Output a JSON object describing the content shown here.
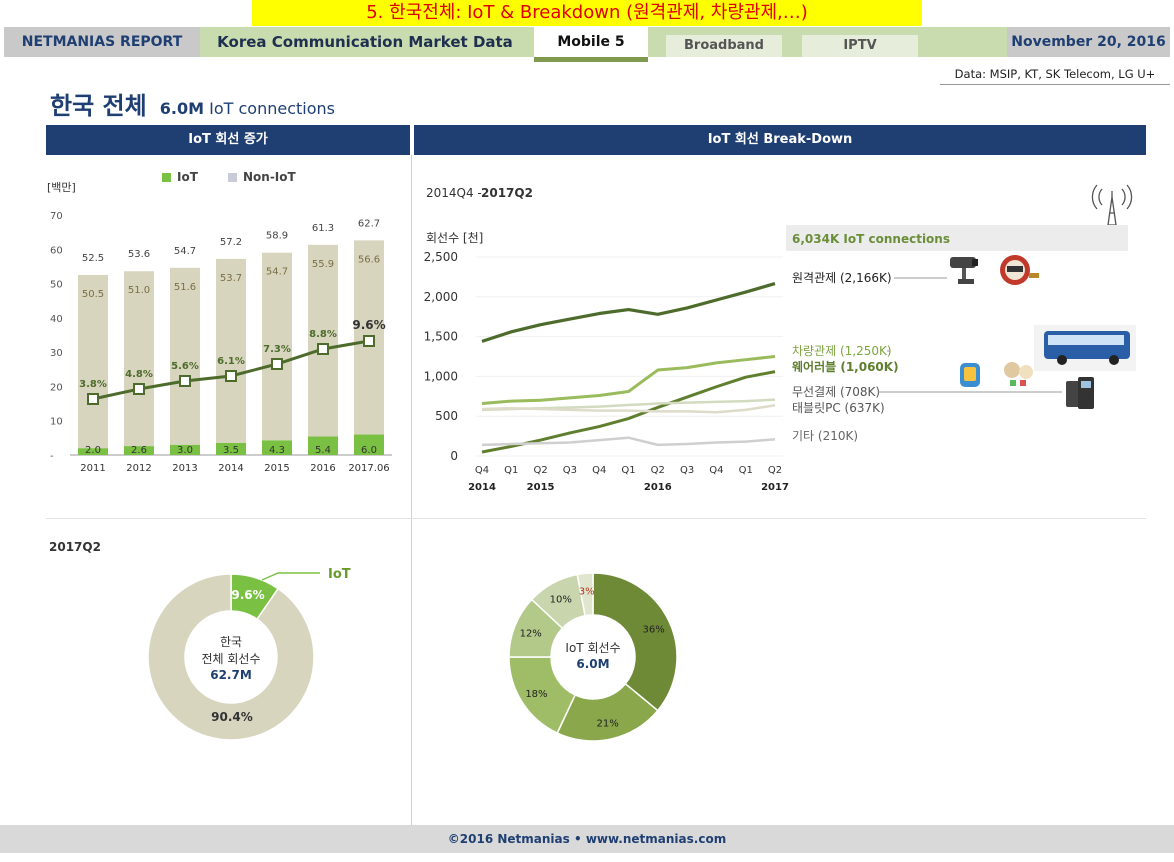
{
  "banner": "5. 한국전체: IoT & Breakdown (원격관제, 차량관제,…)",
  "header": {
    "report": "NETMANIAS REPORT",
    "market": "Korea Communication Market Data",
    "tabs": [
      {
        "label": "Mobile 5",
        "active": true
      },
      {
        "label": "Broadband",
        "active": false
      },
      {
        "label": "IPTV",
        "active": false
      }
    ],
    "date": "November 20, 2016"
  },
  "source_note": "Data: MSIP, KT, SK Telecom, LG U+",
  "page_title": {
    "main": "한국 전체",
    "highlight": "6.0M",
    "rest": "IoT connections"
  },
  "panels": {
    "left_title": "IoT 회선 증가",
    "right_title": "IoT 회선 Break-Down"
  },
  "colors": {
    "navy": "#1f3f73",
    "iot_green": "#7ac143",
    "non_iot": "#d8d5bf",
    "dark_green": "#4d6b2b",
    "mid_green": "#8fb05a"
  },
  "chart_data": [
    {
      "type": "bar",
      "title": "IoT 회선 증가",
      "ylabel": "[백만]",
      "ylim": [
        0,
        70
      ],
      "yticks": [
        "-",
        "10",
        "20",
        "30",
        "40",
        "50",
        "60",
        "70"
      ],
      "categories": [
        "2011",
        "2012",
        "2013",
        "2014",
        "2015",
        "2016",
        "2017.06"
      ],
      "legend": [
        "IoT",
        "Non-IoT"
      ],
      "series": [
        {
          "name": "IoT",
          "values": [
            2.0,
            2.6,
            3.0,
            3.5,
            4.3,
            5.4,
            6.0
          ],
          "labels": [
            "2.0",
            "2.6",
            "3.0",
            "3.5",
            "4.3",
            "5.4",
            "6.0"
          ]
        },
        {
          "name": "Non-IoT",
          "values": [
            50.5,
            51.0,
            51.6,
            53.7,
            54.7,
            55.9,
            56.6
          ],
          "labels": [
            "50.5",
            "51.0",
            "51.6",
            "53.7",
            "54.7",
            "55.9",
            "56.6"
          ]
        }
      ],
      "totals": [
        "52.5",
        "53.6",
        "54.7",
        "57.2",
        "58.9",
        "61.3",
        "62.7"
      ],
      "iot_share": {
        "values": [
          3.8,
          4.8,
          5.6,
          6.1,
          7.3,
          8.8,
          9.6
        ],
        "labels": [
          "3.8%",
          "4.8%",
          "5.6%",
          "6.1%",
          "7.3%",
          "8.8%",
          "9.6%"
        ]
      }
    },
    {
      "type": "line",
      "period_prefix": "2014Q4 - ",
      "period_bold": "2017Q2",
      "ylabel": "회선수 [천]",
      "ylim": [
        0,
        2500
      ],
      "yticks": [
        "0",
        "500",
        "1,000",
        "1,500",
        "2,000",
        "2,500"
      ],
      "x": [
        "Q4",
        "Q1",
        "Q2",
        "Q3",
        "Q4",
        "Q1",
        "Q2",
        "Q3",
        "Q4",
        "Q1",
        "Q2"
      ],
      "years": [
        "2014",
        "2015",
        "2016",
        "2017"
      ],
      "total_label": "6,034K IoT connections",
      "series": [
        {
          "name": "원격관제 (2,166K)",
          "values": [
            1440,
            1560,
            1650,
            1720,
            1790,
            1840,
            1780,
            1860,
            1960,
            2060,
            2166
          ]
        },
        {
          "name": "차량관제 (1,250K)",
          "values": [
            660,
            690,
            700,
            730,
            760,
            810,
            1080,
            1110,
            1170,
            1210,
            1250
          ]
        },
        {
          "name": "웨어러블 (1,060K)",
          "values": [
            50,
            120,
            200,
            290,
            370,
            470,
            610,
            740,
            870,
            990,
            1060
          ]
        },
        {
          "name": "무선결제 (708K)",
          "values": [
            580,
            590,
            600,
            610,
            620,
            640,
            660,
            670,
            680,
            690,
            708
          ]
        },
        {
          "name": "태블릿PC (637K)",
          "values": [
            590,
            600,
            590,
            580,
            570,
            570,
            560,
            560,
            550,
            580,
            637
          ]
        },
        {
          "name": "기타 (210K)",
          "values": [
            140,
            150,
            160,
            170,
            200,
            230,
            140,
            150,
            170,
            180,
            210
          ]
        }
      ]
    },
    {
      "type": "pie",
      "title": "2017Q2",
      "slices": [
        {
          "name": "IoT",
          "value": 9.6,
          "label": "9.6%"
        },
        {
          "name": "Non-IoT",
          "value": 90.4,
          "label": "90.4%"
        }
      ],
      "center_lines": [
        "한국",
        "전체 회선수",
        "62.7M"
      ],
      "callout": "IoT"
    },
    {
      "type": "pie",
      "slices": [
        {
          "value": 36,
          "label": "36%"
        },
        {
          "value": 21,
          "label": "21%"
        },
        {
          "value": 18,
          "label": "18%"
        },
        {
          "value": 12,
          "label": "12%"
        },
        {
          "value": 10,
          "label": "10%"
        },
        {
          "value": 3,
          "label": "3%"
        }
      ],
      "center_lines": [
        "IoT 회선수",
        "6.0M"
      ]
    }
  ],
  "footer": "©2016 Netmanias • www.netmanias.com"
}
